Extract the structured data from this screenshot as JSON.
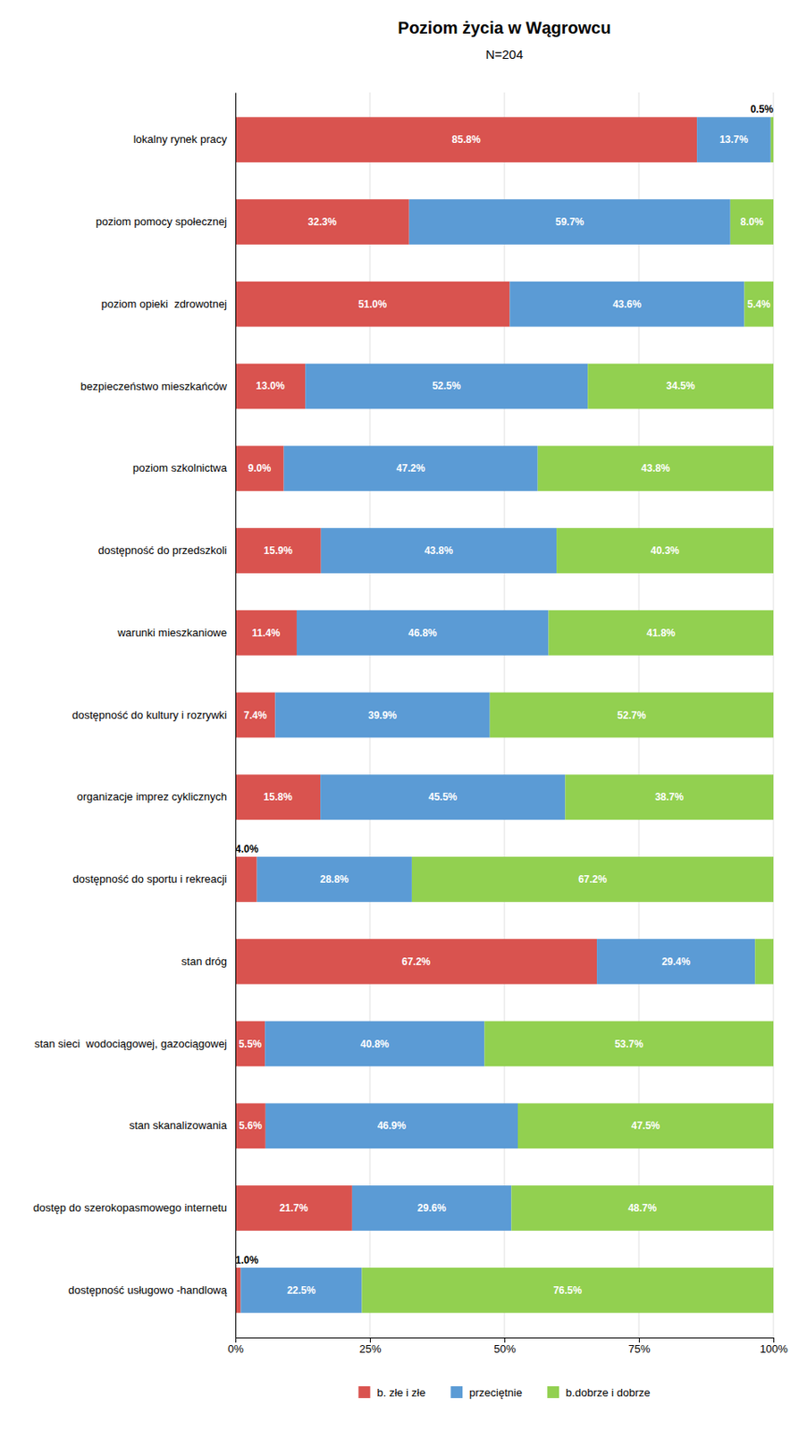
{
  "chart_data": {
    "type": "bar",
    "orientation": "horizontal",
    "stacked": true,
    "title": "Poziom życia w Wągrowcu",
    "subtitle": "N=204",
    "categories": [
      "lokalny rynek pracy",
      "poziom pomocy społecznej",
      "poziom opieki  zdrowotnej",
      "bezpieczeństwo mieszkańców",
      "poziom szkolnictwa",
      "dostępność do przedszkoli",
      "warunki mieszkaniowe",
      "dostępność do kultury i rozrywki",
      "organizacje imprez cyklicznych",
      "dostępność do sportu i rekreacji",
      "stan dróg",
      "stan sieci  wodociągowej, gazociągowej",
      "stan skanalizowania",
      "dostęp do szerokopasmowego internetu",
      "dostępność usługowo -handlową"
    ],
    "series": [
      {
        "name": "b. złe i złe",
        "color": "#d9534f",
        "values": [
          85.8,
          32.3,
          51.0,
          13.0,
          9.0,
          15.9,
          11.4,
          7.4,
          15.8,
          4.0,
          67.2,
          5.5,
          5.6,
          21.7,
          1.0
        ],
        "value_labels": [
          "85.8%",
          "32.3%",
          "51.0%",
          "13.0%",
          "9.0%",
          "15.9%",
          "11.4%",
          "7.4%",
          "15.8%",
          "4.0%",
          "67.2%",
          "5.5%",
          "5.6%",
          "21.7%",
          "1.0%"
        ]
      },
      {
        "name": "przeciętnie",
        "color": "#5b9bd5",
        "values": [
          13.7,
          59.7,
          43.6,
          52.5,
          47.2,
          43.8,
          46.8,
          39.9,
          45.5,
          28.8,
          29.4,
          40.8,
          46.9,
          29.6,
          22.5
        ],
        "value_labels": [
          "13.7%",
          "59.7%",
          "43.6%",
          "52.5%",
          "47.2%",
          "43.8%",
          "46.8%",
          "39.9%",
          "45.5%",
          "28.8%",
          "29.4%",
          "40.8%",
          "46.9%",
          "29.6%",
          "22.5%"
        ]
      },
      {
        "name": "b.dobrze i dobrze",
        "color": "#92d050",
        "values": [
          0.5,
          8.0,
          5.4,
          34.5,
          43.8,
          40.3,
          41.8,
          52.7,
          38.7,
          67.2,
          3.4,
          53.7,
          47.5,
          48.7,
          76.5
        ],
        "value_labels": [
          "0.5%",
          "8.0%",
          "5.4%",
          "34.5%",
          "43.8%",
          "40.3%",
          "41.8%",
          "52.7%",
          "38.7%",
          "67.2%",
          null,
          "53.7%",
          "47.5%",
          "48.7%",
          "76.5%"
        ]
      }
    ],
    "xlim": [
      0,
      100
    ],
    "xticks": [
      {
        "value": 0,
        "label": "0%"
      },
      {
        "value": 25,
        "label": "25%"
      },
      {
        "value": 50,
        "label": "50%"
      },
      {
        "value": 75,
        "label": "75%"
      },
      {
        "value": 100,
        "label": "100%"
      }
    ],
    "grid": true,
    "data_labels": true,
    "legend": "bottom"
  }
}
